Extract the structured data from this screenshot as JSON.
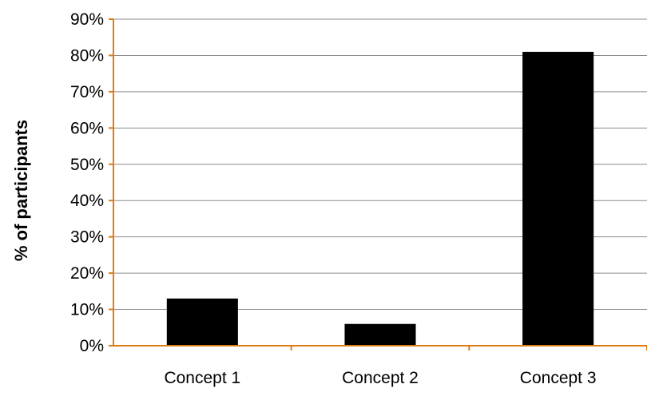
{
  "chart_data": {
    "type": "bar",
    "title": "",
    "xlabel": "",
    "ylabel": "% of participants",
    "categories": [
      "Concept 1",
      "Concept 2",
      "Concept 3"
    ],
    "values": [
      13,
      6,
      81
    ],
    "y_tick_labels": [
      "0%",
      "10%",
      "20%",
      "30%",
      "40%",
      "50%",
      "60%",
      "70%",
      "80%",
      "90%"
    ],
    "ylim": [
      0,
      90
    ],
    "y_tick_step": 10,
    "grid": true,
    "legend": "none",
    "colors": {
      "bar": "#000000",
      "axis": "#e07b12",
      "grid": "#8c8c8c"
    }
  }
}
